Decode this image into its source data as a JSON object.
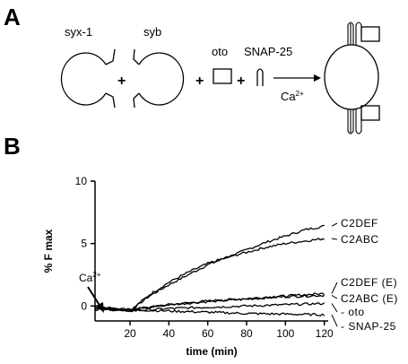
{
  "panel_a": {
    "letter": "A",
    "labels": {
      "syx": "syx-1",
      "syb": "syb",
      "oto": "oto",
      "snap": "SNAP-25",
      "ca": "Ca",
      "ca_sup": "2+",
      "plus": "+"
    }
  },
  "panel_b": {
    "letter": "B"
  },
  "chart_data": {
    "type": "line",
    "xlabel": "time (min)",
    "ylabel": "% F max",
    "xlim": [
      2,
      122
    ],
    "ylim": [
      -1.2,
      10
    ],
    "xticks": [
      20,
      40,
      60,
      80,
      100,
      120
    ],
    "yticks": [
      0,
      5,
      10
    ],
    "annotation": {
      "text": "Ca",
      "sup": "2+",
      "x": 20
    },
    "series": [
      {
        "name": "C2DEF",
        "x": [
          2,
          20,
          30,
          40,
          50,
          60,
          70,
          80,
          90,
          100,
          110,
          120
        ],
        "y": [
          0.0,
          -0.4,
          0.8,
          1.7,
          2.5,
          3.3,
          3.9,
          4.5,
          5.1,
          5.6,
          6.1,
          6.4
        ]
      },
      {
        "name": "C2ABC",
        "x": [
          2,
          20,
          30,
          40,
          50,
          60,
          70,
          80,
          90,
          100,
          110,
          120
        ],
        "y": [
          0.0,
          -0.4,
          0.9,
          1.9,
          2.7,
          3.4,
          3.9,
          4.3,
          4.7,
          5.0,
          5.2,
          5.4
        ]
      },
      {
        "name": "C2DEF (E)",
        "x": [
          2,
          20,
          40,
          60,
          80,
          100,
          120
        ],
        "y": [
          -0.1,
          -0.3,
          0.1,
          0.4,
          0.6,
          0.8,
          1.0
        ]
      },
      {
        "name": "C2ABC (E)",
        "x": [
          2,
          20,
          40,
          60,
          80,
          100,
          120
        ],
        "y": [
          -0.1,
          -0.3,
          0.1,
          0.35,
          0.55,
          0.75,
          0.85
        ]
      },
      {
        "name": "- oto",
        "x": [
          2,
          20,
          40,
          60,
          80,
          100,
          120
        ],
        "y": [
          -0.2,
          -0.4,
          -0.2,
          -0.1,
          0.0,
          0.1,
          0.2
        ]
      },
      {
        "name": "- SNAP-25",
        "x": [
          2,
          20,
          40,
          60,
          80,
          100,
          120
        ],
        "y": [
          -0.3,
          -0.3,
          -0.4,
          -0.5,
          -0.6,
          -0.65,
          -0.7
        ]
      }
    ]
  }
}
